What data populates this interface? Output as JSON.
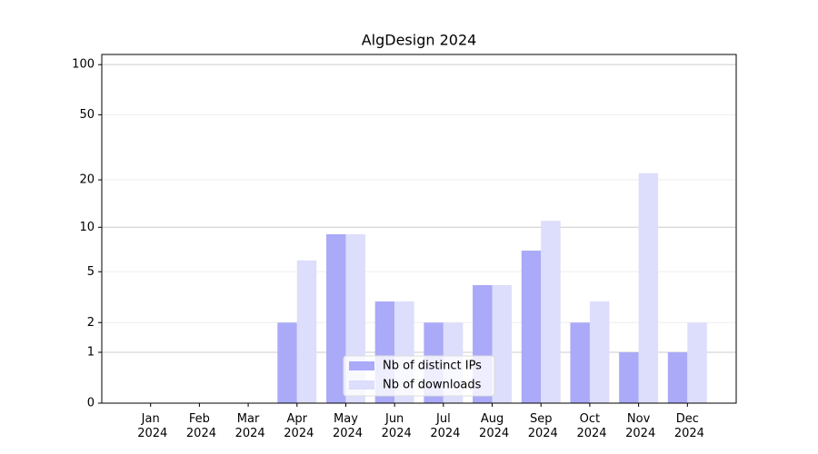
{
  "chart_data": {
    "type": "bar",
    "title": "AlgDesign 2024",
    "categories": [
      "Jan 2024",
      "Feb 2024",
      "Mar 2024",
      "Apr 2024",
      "May 2024",
      "Jun 2024",
      "Jul 2024",
      "Aug 2024",
      "Sep 2024",
      "Oct 2024",
      "Nov 2024",
      "Dec 2024"
    ],
    "series": [
      {
        "name": "Nb of distinct IPs",
        "color": "#aaaaf8",
        "values": [
          0,
          0,
          0,
          2,
          9,
          3,
          2,
          4,
          7,
          2,
          1,
          1
        ]
      },
      {
        "name": "Nb of downloads",
        "color": "#ddddfc",
        "values": [
          0,
          0,
          0,
          6,
          9,
          3,
          2,
          4,
          11,
          3,
          22,
          2
        ]
      }
    ],
    "yscale": "log1p",
    "ylim": [
      0,
      115
    ],
    "yticks": [
      0,
      1,
      2,
      5,
      10,
      20,
      50,
      100
    ],
    "grid": true,
    "legend": "lower center"
  }
}
